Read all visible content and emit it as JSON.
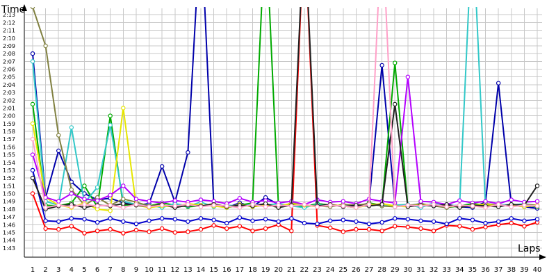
{
  "chart_data": {
    "type": "line",
    "ylabel": "Time",
    "xlabel": "Laps",
    "x": [
      1,
      2,
      3,
      4,
      5,
      6,
      7,
      8,
      9,
      10,
      11,
      12,
      13,
      14,
      15,
      16,
      17,
      18,
      19,
      20,
      21,
      22,
      23,
      24,
      25,
      26,
      27,
      28,
      29,
      30,
      31,
      32,
      33,
      34,
      35,
      36,
      37,
      38,
      39,
      40
    ],
    "x_tick_labels": [
      "1",
      "2",
      "3",
      "4",
      "5",
      "6",
      "7",
      "8",
      "9",
      "10",
      "11",
      "12",
      "13",
      "14",
      "15",
      "16",
      "17",
      "18",
      "19",
      "20",
      "21",
      "22",
      "23",
      "24",
      "25",
      "26",
      "27",
      "28",
      "29",
      "30",
      "31",
      "32",
      "33",
      "34",
      "35",
      "36",
      "37",
      "38",
      "39",
      "40"
    ],
    "y_tick_labels": [
      "1:43",
      "1:44",
      "1:45",
      "1:46",
      "1:47",
      "1:48",
      "1:49",
      "1:50",
      "1:51",
      "1:52",
      "1:53",
      "1:54",
      "1:55",
      "1:56",
      "1:57",
      "1:58",
      "1:59",
      "2:00",
      "2:01",
      "2:02",
      "2:03",
      "2:04",
      "2:05",
      "2:06",
      "2:07",
      "2:08",
      "2:09",
      "2:10",
      "2:11",
      "2:12",
      "2:13"
    ],
    "y_unit": "seconds",
    "ylim": [
      102,
      134
    ],
    "xlim": [
      1,
      40
    ],
    "grid": true,
    "legend": "none",
    "series": [
      {
        "color": "#ff0000",
        "values": [
          110,
          105.5,
          105.4,
          105.8,
          104.9,
          105.2,
          105.4,
          104.9,
          105.3,
          105.1,
          105.5,
          105,
          105.1,
          105.4,
          105.9,
          105.5,
          105.8,
          105.2,
          105.5,
          106,
          105.2,
          145,
          105.9,
          105.6,
          105.1,
          105.4,
          105.4,
          105.2,
          105.8,
          105.7,
          105.5,
          105.2,
          105.9,
          105.8,
          105.4,
          105.7,
          106,
          106.2,
          105.8,
          106.3
        ]
      },
      {
        "color": "#0000cc",
        "values": [
          113,
          106.5,
          106.4,
          106.8,
          106.7,
          106.3,
          106.8,
          106.4,
          106.1,
          106.5,
          106.8,
          106.7,
          106.4,
          106.8,
          106.6,
          106.2,
          106.9,
          106.5,
          106.7,
          106.4,
          106.8,
          106.2,
          106.1,
          106.5,
          106.6,
          106.4,
          106.1,
          106.3,
          106.8,
          106.7,
          106.5,
          106.4,
          106.1,
          106.8,
          106.6,
          106.2,
          106.4,
          106.8,
          106.5,
          106.7
        ]
      },
      {
        "color": "#0000aa",
        "values": [
          128,
          109.5,
          115.5,
          111.5,
          110,
          109.2,
          109.4,
          108.8,
          108.5,
          108.7,
          113.5,
          108.9,
          115.3,
          145,
          108.5,
          108.2,
          108.8,
          108.3,
          109.5,
          108.6,
          108.4,
          108.3,
          108.7,
          108.5,
          108.4,
          108.3,
          108.8,
          126.5,
          108.5,
          108.4,
          108.7,
          108.4,
          108.6,
          108.3,
          108.2,
          108.9,
          124.2,
          108.5,
          108.3,
          108.1
        ]
      },
      {
        "color": "#00aa00",
        "values": [
          121.5,
          108.5,
          108.4,
          108.8,
          111,
          108.3,
          120,
          108.5,
          108.6,
          108.4,
          108.8,
          108.5,
          108.3,
          108.4,
          108.6,
          108.2,
          108.5,
          108.8,
          145,
          108.4,
          108.6,
          108.3,
          108.7,
          108.5,
          108.4,
          108.2,
          108.8,
          108.5,
          126.8,
          108.3,
          108.6,
          108.5,
          108.2,
          108.4,
          108.7,
          108.5,
          108.4,
          108.6,
          108.5,
          108.3
        ]
      },
      {
        "color": "#32c8c8",
        "values": [
          127,
          109,
          108.5,
          118.5,
          108.8,
          110.8,
          118.8,
          109,
          108.6,
          108.5,
          108.2,
          108.7,
          108.4,
          108.9,
          108.3,
          108.5,
          108.4,
          108.6,
          108.5,
          108.7,
          108.4,
          108.2,
          108.6,
          108.4,
          108.5,
          108.3,
          108.7,
          108.4,
          108.5,
          108.6,
          108.2,
          108.8,
          108.4,
          108.5,
          145,
          108.3,
          108.6,
          108.5,
          108.7,
          108.4
        ]
      },
      {
        "color": "#808040",
        "values": [
          134,
          129,
          117.5,
          110.5,
          108.5,
          109.5,
          108.5,
          109.3,
          108.9,
          108.4,
          108.6,
          108.2,
          108.5,
          108.4,
          108.7,
          108.3,
          108.5,
          108.4,
          108.6,
          108.2,
          108.8,
          108.5,
          108.4,
          108.3,
          108.6,
          108.5,
          108.7,
          108.4,
          108.3,
          108.5,
          108.6,
          108.4,
          108.2,
          108.5,
          108.3,
          108.7,
          108.5,
          108.4,
          108.6,
          108.5
        ]
      },
      {
        "color": "#e6e600",
        "values": [
          119,
          109.5,
          108.5,
          108.2,
          108.8,
          108,
          107.8,
          121,
          108.5,
          108.2,
          108.4,
          108.3,
          108.7,
          108.5,
          108.4,
          108.2,
          108.6,
          108.3,
          108.5,
          108.4,
          108.7,
          108.5,
          108.3,
          108.6,
          108.4,
          108.2,
          108.5,
          108.7,
          108.4,
          108.3,
          108.6,
          108.5,
          108.4,
          108.3,
          108.5,
          108.6,
          108.4,
          108.5,
          108.3,
          108.5
        ]
      },
      {
        "color": "#b400ff",
        "values": [
          115,
          109.5,
          109,
          110,
          109.3,
          109.1,
          109.8,
          111,
          109.3,
          109,
          108.8,
          109.1,
          108.9,
          109.2,
          109,
          108.7,
          109.4,
          108.9,
          109.1,
          108.8,
          109,
          108.6,
          109.2,
          108.9,
          109,
          108.7,
          109.3,
          109,
          108.8,
          125,
          109,
          108.9,
          108.6,
          109.1,
          108.8,
          109,
          108.7,
          109.2,
          108.9,
          109
        ]
      },
      {
        "color": "#202020",
        "values": [
          112,
          108,
          108.4,
          108.6,
          108.2,
          108.5,
          108.4,
          108.7,
          108.5,
          108.3,
          108.6,
          108.2,
          108.5,
          108.4,
          108.6,
          108.3,
          108.5,
          108.4,
          108.7,
          108.2,
          108.5,
          145,
          108.4,
          108.6,
          108.3,
          108.5,
          108.4,
          108.6,
          121.5,
          108.3,
          108.5,
          108.4,
          108.6,
          108.2,
          108.5,
          108.4,
          108.3,
          108.6,
          108.5,
          111
        ]
      },
      {
        "color": "#ffa0c8",
        "values": [
          117,
          108.2,
          108.5,
          108.3,
          108.6,
          108.4,
          108.5,
          108.2,
          108.6,
          108.3,
          108.5,
          108.4,
          108.6,
          108.3,
          108.5,
          108.4,
          108.2,
          108.6,
          108.3,
          108.5,
          108.4,
          108.6,
          108.3,
          108.5,
          108.4,
          108.2,
          108.6,
          145,
          108.3,
          108.5,
          108.4,
          108.6,
          108.3,
          108.5,
          108.4,
          108.2,
          108.6,
          108.3,
          108.5,
          108.4
        ]
      }
    ]
  }
}
